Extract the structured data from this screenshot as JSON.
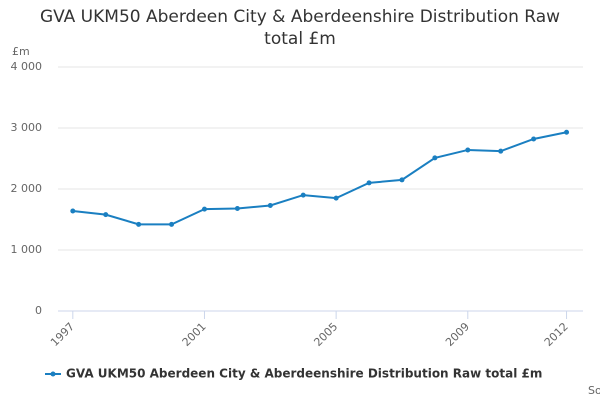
{
  "chart_data": {
    "type": "line",
    "title": "GVA UKM50 Aberdeen City & Aberdeenshire Distribution Raw total £m",
    "y_label": "£m",
    "x": [
      1997,
      1998,
      1999,
      2000,
      2001,
      2002,
      2003,
      2004,
      2005,
      2006,
      2007,
      2008,
      2009,
      2010,
      2011,
      2012
    ],
    "series": [
      {
        "name": "GVA UKM50 Aberdeen City & Aberdeenshire Distribution Raw total £m",
        "color": "#1a7fc1",
        "values": [
          1640,
          1580,
          1420,
          1420,
          1670,
          1680,
          1730,
          1900,
          1850,
          2100,
          2150,
          2510,
          2640,
          2620,
          2820,
          2930
        ]
      }
    ],
    "xlim": [
      1996.55,
      2012.5
    ],
    "xticks": [
      1997,
      2001,
      2005,
      2009,
      2012
    ],
    "ylim": [
      0,
      4000
    ],
    "yticks": [
      0,
      {
        "value": 1000,
        "label": "1 000"
      },
      {
        "value": 2000,
        "label": "2 000"
      },
      {
        "value": 3000,
        "label": "3 000"
      },
      {
        "value": 4000,
        "label": "4 000"
      }
    ],
    "grid": true,
    "legend": "bottom",
    "source": "Source:"
  }
}
